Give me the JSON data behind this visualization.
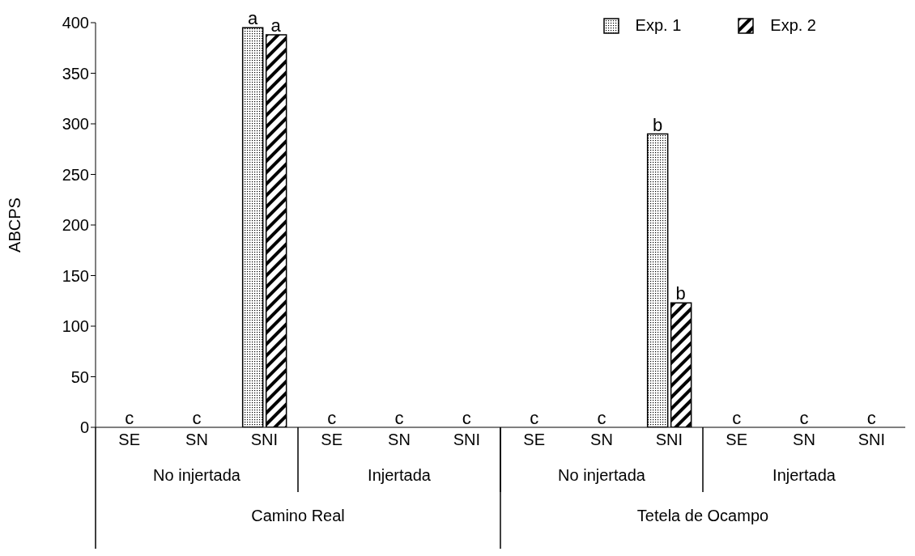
{
  "chart_data": {
    "type": "bar",
    "ylabel": "ABCPS",
    "categories": [
      "SE",
      "SN",
      "SNI",
      "SE",
      "SN",
      "SNI",
      "SE",
      "SN",
      "SNI",
      "SE",
      "SN",
      "SNI"
    ],
    "series": [
      {
        "name": "Exp. 1",
        "color": "#000000",
        "values": [
          0,
          0,
          395,
          0,
          0,
          0,
          0,
          0,
          290,
          0,
          0,
          0
        ],
        "value_labels": [
          "c",
          "c",
          "a",
          "c",
          "c",
          "c",
          "c",
          "c",
          "b",
          "c",
          "c",
          "c"
        ]
      },
      {
        "name": "Exp. 2",
        "color": "#000000",
        "values": [
          0,
          0,
          388,
          0,
          0,
          0,
          0,
          0,
          123,
          0,
          0,
          0
        ],
        "value_labels": [
          null,
          null,
          "a",
          null,
          null,
          null,
          null,
          null,
          "b",
          null,
          null,
          null
        ]
      }
    ],
    "annotations": [
      "No injertada",
      "Injertada",
      "No injertada",
      "Injertada",
      "Camino Real",
      "Tetela de Ocampo"
    ],
    "ylim": [
      0,
      400
    ],
    "yticks": [
      0,
      50,
      100,
      150,
      200,
      250,
      300,
      350,
      400
    ],
    "legend": "top right"
  }
}
